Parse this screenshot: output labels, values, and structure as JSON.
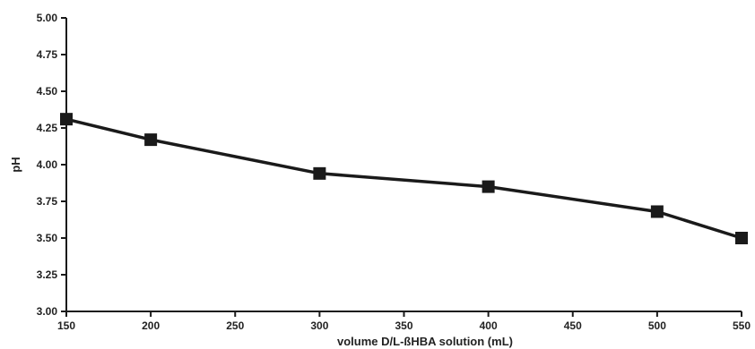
{
  "chart_data": {
    "type": "line",
    "title": "",
    "xlabel": "volume D/L-ßHBA solution (mL)",
    "ylabel": "pH",
    "xlim": [
      150,
      550
    ],
    "ylim": [
      3.0,
      5.0
    ],
    "x_ticks": [
      150,
      200,
      250,
      300,
      350,
      400,
      450,
      500,
      550
    ],
    "y_ticks": [
      "3.00",
      "3.25",
      "3.50",
      "3.75",
      "4.00",
      "4.25",
      "4.50",
      "4.75",
      "5.00"
    ],
    "grid": false,
    "legend": "none",
    "series": [
      {
        "x": [
          150,
          200,
          300,
          400,
          500,
          550
        ],
        "y": [
          4.31,
          4.17,
          3.94,
          3.85,
          3.68,
          3.5
        ],
        "marker": "square",
        "color": "#1a1a1a"
      }
    ]
  }
}
